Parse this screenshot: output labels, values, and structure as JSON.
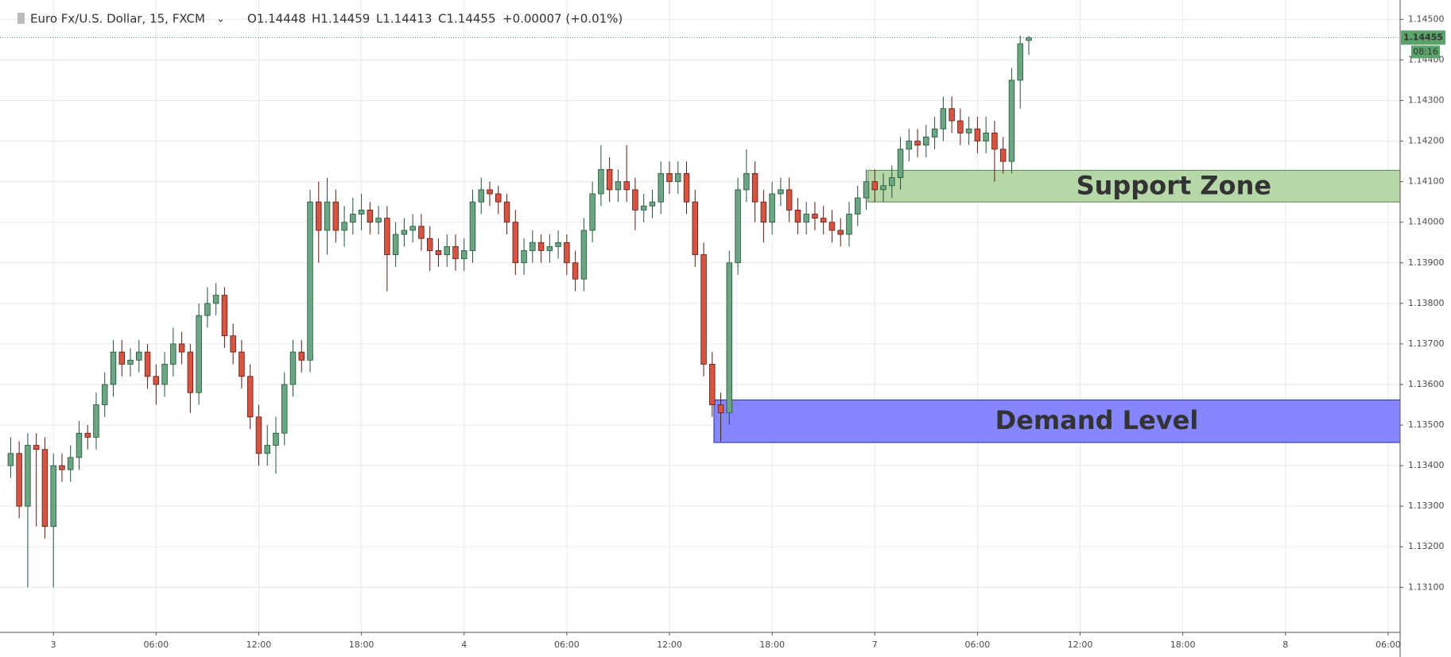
{
  "chart_data": {
    "type": "candlestick",
    "title": "Euro Fx/U.S. Dollar, 15, FXCM",
    "ohlc_labels": [
      "O1.14448",
      "H1.14459",
      "L1.14413",
      "C1.14455",
      "+0.00007 (+0.01%)"
    ],
    "last_price_label": "1.14455",
    "countdown": "08:16",
    "up_color": "#6ba583",
    "down_color": "#d75442",
    "grid": true,
    "xlim": [
      -2.75,
      78.7
    ],
    "ylim": [
      1.12989,
      1.14536
    ],
    "xticks": [
      {
        "value": 0,
        "label": "3"
      },
      {
        "value": 6,
        "label": "06:00"
      },
      {
        "value": 12,
        "label": "12:00"
      },
      {
        "value": 18,
        "label": "18:00"
      },
      {
        "value": 24,
        "label": "4"
      },
      {
        "value": 30,
        "label": "06:00"
      },
      {
        "value": 36,
        "label": "12:00"
      },
      {
        "value": 42,
        "label": "18:00"
      },
      {
        "value": 48,
        "label": "7"
      },
      {
        "value": 54,
        "label": "06:00"
      },
      {
        "value": 60,
        "label": "12:00"
      },
      {
        "value": 66,
        "label": "18:00"
      },
      {
        "value": 72,
        "label": "8"
      },
      {
        "value": 78,
        "label": "06:00"
      }
    ],
    "yticks": [
      {
        "value": 1.131,
        "label": "1.13100"
      },
      {
        "value": 1.132,
        "label": "1.13200"
      },
      {
        "value": 1.133,
        "label": "1.13300"
      },
      {
        "value": 1.134,
        "label": "1.13400"
      },
      {
        "value": 1.135,
        "label": "1.13500"
      },
      {
        "value": 1.136,
        "label": "1.13600"
      },
      {
        "value": 1.137,
        "label": "1.13700"
      },
      {
        "value": 1.138,
        "label": "1.13800"
      },
      {
        "value": 1.139,
        "label": "1.13900"
      },
      {
        "value": 1.14,
        "label": "1.14000"
      },
      {
        "value": 1.141,
        "label": "1.14100"
      },
      {
        "value": 1.142,
        "label": "1.14200"
      },
      {
        "value": 1.143,
        "label": "1.14300"
      },
      {
        "value": 1.144,
        "label": "1.14400"
      },
      {
        "value": 1.145,
        "label": "1.14500"
      }
    ],
    "zones": [
      {
        "label": "Support Zone",
        "xmin": 47.6,
        "ymin": 1.1405,
        "ymax": 1.14128,
        "color": "#b3d5a3",
        "border": "#4f7f44"
      },
      {
        "label": "Demand Level",
        "xmin": 38.6,
        "ymin": 1.13457,
        "ymax": 1.13562,
        "color": "#8080ff",
        "border": "#1f1f9a"
      }
    ],
    "x": [
      -2.5,
      -2,
      -1.5,
      -1,
      -0.5,
      0,
      0.5,
      1,
      1.5,
      2,
      2.5,
      3,
      3.5,
      4,
      4.5,
      5,
      5.5,
      6,
      6.5,
      7,
      7.5,
      8,
      8.5,
      9,
      9.5,
      10,
      10.5,
      11,
      11.5,
      12,
      12.5,
      13,
      13.5,
      14,
      14.5,
      15,
      15.5,
      16,
      16.5,
      17,
      17.5,
      18,
      18.5,
      19,
      19.5,
      20,
      20.5,
      21,
      21.5,
      22,
      22.5,
      23,
      23.5,
      24,
      24.5,
      25,
      25.5,
      26,
      26.5,
      27,
      27.5,
      28,
      28.5,
      29,
      29.5,
      30,
      30.5,
      31,
      31.5,
      32,
      32.5,
      33,
      33.5,
      34,
      34.5,
      35,
      35.5,
      36,
      36.5,
      37,
      37.5,
      38,
      38.5,
      39,
      39.5,
      40,
      40.5,
      41,
      41.5,
      42,
      42.5,
      43,
      43.5,
      44,
      44.5,
      45,
      45.5,
      46,
      46.5,
      47,
      47.5,
      48,
      48.5,
      49,
      49.5,
      50,
      50.5,
      51,
      51.5,
      52,
      52.5,
      53,
      53.5,
      54,
      54.5,
      55,
      55.5,
      56,
      56.5,
      57
    ],
    "candles": [
      [
        1.134,
        1.1347,
        1.1337,
        1.1343
      ],
      [
        1.1343,
        1.1346,
        1.1327,
        1.133
      ],
      [
        1.133,
        1.1348,
        1.131,
        1.1345
      ],
      [
        1.1345,
        1.1348,
        1.1325,
        1.1344
      ],
      [
        1.1344,
        1.1347,
        1.1322,
        1.1325
      ],
      [
        1.1325,
        1.1343,
        1.131,
        1.134
      ],
      [
        1.134,
        1.1343,
        1.1336,
        1.1339
      ],
      [
        1.1339,
        1.1345,
        1.1336,
        1.1342
      ],
      [
        1.1342,
        1.1351,
        1.1339,
        1.1348
      ],
      [
        1.1348,
        1.135,
        1.1344,
        1.1347
      ],
      [
        1.1347,
        1.1358,
        1.1344,
        1.1355
      ],
      [
        1.1355,
        1.1363,
        1.1352,
        1.136
      ],
      [
        1.136,
        1.1371,
        1.1357,
        1.1368
      ],
      [
        1.1368,
        1.1371,
        1.1362,
        1.1365
      ],
      [
        1.1365,
        1.1369,
        1.1362,
        1.1366
      ],
      [
        1.1366,
        1.1371,
        1.1363,
        1.1368
      ],
      [
        1.1368,
        1.137,
        1.1359,
        1.1362
      ],
      [
        1.1362,
        1.1365,
        1.1355,
        1.136
      ],
      [
        1.136,
        1.1368,
        1.1357,
        1.1365
      ],
      [
        1.1365,
        1.1374,
        1.1362,
        1.137
      ],
      [
        1.137,
        1.1373,
        1.1365,
        1.1368
      ],
      [
        1.1368,
        1.137,
        1.1353,
        1.1358
      ],
      [
        1.1358,
        1.138,
        1.1355,
        1.1377
      ],
      [
        1.1377,
        1.1384,
        1.1374,
        1.138
      ],
      [
        1.138,
        1.1385,
        1.1377,
        1.1382
      ],
      [
        1.1382,
        1.1384,
        1.1369,
        1.1372
      ],
      [
        1.1372,
        1.1375,
        1.1365,
        1.1368
      ],
      [
        1.1368,
        1.1371,
        1.1359,
        1.1362
      ],
      [
        1.1362,
        1.1365,
        1.1349,
        1.1352
      ],
      [
        1.1352,
        1.1355,
        1.134,
        1.1343
      ],
      [
        1.1343,
        1.135,
        1.134,
        1.1345
      ],
      [
        1.1345,
        1.1352,
        1.1338,
        1.1348
      ],
      [
        1.1348,
        1.1363,
        1.1345,
        1.136
      ],
      [
        1.136,
        1.1371,
        1.1357,
        1.1368
      ],
      [
        1.1368,
        1.1371,
        1.1363,
        1.1366
      ],
      [
        1.1366,
        1.1408,
        1.1363,
        1.1405
      ],
      [
        1.1405,
        1.141,
        1.139,
        1.1398
      ],
      [
        1.1398,
        1.1411,
        1.1392,
        1.1405
      ],
      [
        1.1405,
        1.1408,
        1.1395,
        1.1398
      ],
      [
        1.1398,
        1.1404,
        1.1394,
        1.14
      ],
      [
        1.14,
        1.1406,
        1.1397,
        1.1402
      ],
      [
        1.1402,
        1.1407,
        1.1398,
        1.1403
      ],
      [
        1.1403,
        1.1405,
        1.1397,
        1.14
      ],
      [
        1.14,
        1.1404,
        1.1397,
        1.1401
      ],
      [
        1.1401,
        1.1404,
        1.1383,
        1.1392
      ],
      [
        1.1392,
        1.14,
        1.1389,
        1.1397
      ],
      [
        1.1397,
        1.1401,
        1.1394,
        1.1398
      ],
      [
        1.1398,
        1.1402,
        1.1395,
        1.1399
      ],
      [
        1.1399,
        1.1402,
        1.1393,
        1.1396
      ],
      [
        1.1396,
        1.1399,
        1.1388,
        1.1393
      ],
      [
        1.1393,
        1.1396,
        1.1389,
        1.1392
      ],
      [
        1.1392,
        1.1397,
        1.1389,
        1.1394
      ],
      [
        1.1394,
        1.1397,
        1.1388,
        1.1391
      ],
      [
        1.1391,
        1.1396,
        1.1388,
        1.1393
      ],
      [
        1.1393,
        1.1408,
        1.139,
        1.1405
      ],
      [
        1.1405,
        1.1411,
        1.1402,
        1.1408
      ],
      [
        1.1408,
        1.141,
        1.1404,
        1.1407
      ],
      [
        1.1407,
        1.1409,
        1.1402,
        1.1405
      ],
      [
        1.1405,
        1.1407,
        1.1397,
        1.14
      ],
      [
        1.14,
        1.1403,
        1.1387,
        1.139
      ],
      [
        1.139,
        1.1396,
        1.1387,
        1.1393
      ],
      [
        1.1393,
        1.1398,
        1.139,
        1.1395
      ],
      [
        1.1395,
        1.1397,
        1.139,
        1.1393
      ],
      [
        1.1393,
        1.1397,
        1.139,
        1.1394
      ],
      [
        1.1394,
        1.1398,
        1.1391,
        1.1395
      ],
      [
        1.1395,
        1.1397,
        1.1387,
        1.139
      ],
      [
        1.139,
        1.1393,
        1.1383,
        1.1386
      ],
      [
        1.1386,
        1.1401,
        1.1383,
        1.1398
      ],
      [
        1.1398,
        1.141,
        1.1395,
        1.1407
      ],
      [
        1.1407,
        1.1419,
        1.1404,
        1.1413
      ],
      [
        1.1413,
        1.1416,
        1.1405,
        1.1408
      ],
      [
        1.1408,
        1.1413,
        1.1405,
        1.141
      ],
      [
        1.141,
        1.1419,
        1.1405,
        1.1408
      ],
      [
        1.1408,
        1.1411,
        1.1398,
        1.1403
      ],
      [
        1.1403,
        1.1407,
        1.14,
        1.1404
      ],
      [
        1.1404,
        1.1408,
        1.1401,
        1.1405
      ],
      [
        1.1405,
        1.1415,
        1.1402,
        1.1412
      ],
      [
        1.1412,
        1.1415,
        1.1407,
        1.141
      ],
      [
        1.141,
        1.1415,
        1.1407,
        1.1412
      ],
      [
        1.1412,
        1.1415,
        1.1402,
        1.1405
      ],
      [
        1.1405,
        1.1408,
        1.1389,
        1.1392
      ],
      [
        1.1392,
        1.1395,
        1.1362,
        1.1365
      ],
      [
        1.1365,
        1.1368,
        1.1352,
        1.1355
      ],
      [
        1.1355,
        1.1358,
        1.1346,
        1.1353
      ],
      [
        1.1353,
        1.1393,
        1.135,
        1.139
      ],
      [
        1.139,
        1.1411,
        1.1387,
        1.1408
      ],
      [
        1.1408,
        1.1418,
        1.1405,
        1.1412
      ],
      [
        1.1412,
        1.1415,
        1.14,
        1.1405
      ],
      [
        1.1405,
        1.1408,
        1.1395,
        1.14
      ],
      [
        1.14,
        1.141,
        1.1397,
        1.1407
      ],
      [
        1.1407,
        1.1411,
        1.1404,
        1.1408
      ],
      [
        1.1408,
        1.1411,
        1.14,
        1.1403
      ],
      [
        1.1403,
        1.1406,
        1.1397,
        1.14
      ],
      [
        1.14,
        1.1405,
        1.1397,
        1.1402
      ],
      [
        1.1402,
        1.1405,
        1.1398,
        1.1401
      ],
      [
        1.1401,
        1.1404,
        1.1397,
        1.14
      ],
      [
        1.14,
        1.1403,
        1.1395,
        1.1398
      ],
      [
        1.1398,
        1.1401,
        1.1394,
        1.1397
      ],
      [
        1.1397,
        1.1405,
        1.1394,
        1.1402
      ],
      [
        1.1402,
        1.1409,
        1.1399,
        1.1406
      ],
      [
        1.1406,
        1.1413,
        1.1403,
        1.141
      ],
      [
        1.141,
        1.1413,
        1.1405,
        1.1408
      ],
      [
        1.1408,
        1.1412,
        1.1405,
        1.1409
      ],
      [
        1.1409,
        1.1414,
        1.1406,
        1.1411
      ],
      [
        1.1411,
        1.1421,
        1.1408,
        1.1418
      ],
      [
        1.1418,
        1.1423,
        1.1415,
        1.142
      ],
      [
        1.142,
        1.1423,
        1.1416,
        1.1419
      ],
      [
        1.1419,
        1.1424,
        1.1416,
        1.1421
      ],
      [
        1.1421,
        1.1426,
        1.1418,
        1.1423
      ],
      [
        1.1423,
        1.1431,
        1.142,
        1.1428
      ],
      [
        1.1428,
        1.1431,
        1.1422,
        1.1425
      ],
      [
        1.1425,
        1.1428,
        1.1419,
        1.1422
      ],
      [
        1.1422,
        1.1426,
        1.1419,
        1.1423
      ],
      [
        1.1423,
        1.1426,
        1.1417,
        1.142
      ],
      [
        1.142,
        1.1426,
        1.1417,
        1.1422
      ],
      [
        1.1422,
        1.1425,
        1.141,
        1.1418
      ],
      [
        1.1418,
        1.1421,
        1.1412,
        1.1415
      ],
      [
        1.1415,
        1.1438,
        1.1412,
        1.1435
      ],
      [
        1.1435,
        1.1446,
        1.1428,
        1.1444
      ],
      [
        1.14448,
        1.14459,
        1.14413,
        1.14455
      ]
    ]
  }
}
